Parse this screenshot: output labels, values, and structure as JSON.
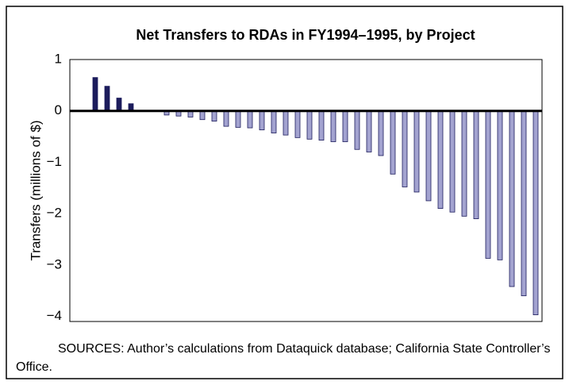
{
  "chart_data": {
    "type": "bar",
    "title": "Net Transfers to RDAs in FY1994–1995, by Project",
    "y_label": "Transfers (millions of $)",
    "source": "SOURCES:  Author’s calculations from Dataquick database; California State Controller’s Office.",
    "categories": [
      null,
      null,
      null,
      null,
      null,
      null,
      null,
      null,
      null,
      null,
      null,
      null,
      null,
      null,
      null,
      null,
      null,
      null,
      null,
      null,
      null,
      null,
      null,
      null,
      null,
      null,
      null,
      null,
      null,
      null,
      null,
      null,
      null,
      null,
      null,
      null,
      null,
      null
    ],
    "values": [
      0.65,
      0.48,
      0.25,
      0.14,
      0,
      0,
      -0.08,
      -0.1,
      -0.12,
      -0.17,
      -0.2,
      -0.3,
      -0.32,
      -0.33,
      -0.37,
      -0.43,
      -0.47,
      -0.52,
      -0.55,
      -0.57,
      -0.6,
      -0.6,
      -0.75,
      -0.8,
      -0.87,
      -1.23,
      -1.48,
      -1.58,
      -1.75,
      -1.9,
      -1.97,
      -2.05,
      -2.1,
      -2.87,
      -2.9,
      -3.42,
      -3.6,
      -3.97
    ],
    "positive_color": "#1c1c5c",
    "negative_color": "#a3a3d0",
    "ylim": [
      -4.1,
      1
    ],
    "yticks": [
      {
        "value": -4,
        "label": "−4"
      },
      {
        "value": -3,
        "label": "−3"
      },
      {
        "value": -2,
        "label": "−2"
      },
      {
        "value": -1,
        "label": "−1"
      },
      0,
      1
    ],
    "grid": false
  }
}
